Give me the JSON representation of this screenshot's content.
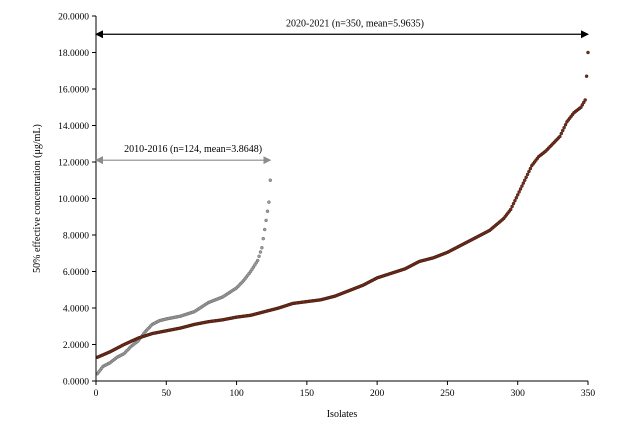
{
  "chart_data": {
    "type": "scatter",
    "xlabel": "Isolates",
    "ylabel": "50% effective concentration (μg/mL)",
    "xlim": [
      0,
      350
    ],
    "ylim": [
      0,
      20
    ],
    "x_ticks": [
      "0",
      "50",
      "100",
      "150",
      "200",
      "250",
      "300",
      "350"
    ],
    "y_ticks": [
      "0.0000",
      "2.0000",
      "4.0000",
      "6.0000",
      "8.0000",
      "10.0000",
      "12.0000",
      "14.0000",
      "16.0000",
      "18.0000",
      "20.0000"
    ],
    "grid": false,
    "colors": {
      "series_2020": "#7a2e1a",
      "series_2010": "#8c8c8c",
      "arrow_2020": "#000000",
      "arrow_2010": "#8c8c8c"
    },
    "annotations": [
      {
        "text": "2020-2021 (n=350, mean=5.9635)",
        "x_start": 0,
        "x_end": 350,
        "y": 19.0
      },
      {
        "text": "2010-2016 (n=124, mean=3.8648)",
        "x_start": 0,
        "x_end": 124,
        "y": 12.1
      }
    ],
    "series": [
      {
        "n": 350,
        "curve": [
          [
            1,
            1.3
          ],
          [
            10,
            1.6
          ],
          [
            20,
            2.0
          ],
          [
            30,
            2.35
          ],
          [
            40,
            2.6
          ],
          [
            50,
            2.75
          ],
          [
            60,
            2.9
          ],
          [
            70,
            3.1
          ],
          [
            80,
            3.25
          ],
          [
            90,
            3.35
          ],
          [
            100,
            3.5
          ],
          [
            110,
            3.6
          ],
          [
            120,
            3.8
          ],
          [
            130,
            4.0
          ],
          [
            140,
            4.25
          ],
          [
            150,
            4.35
          ],
          [
            160,
            4.45
          ],
          [
            170,
            4.65
          ],
          [
            180,
            4.95
          ],
          [
            190,
            5.25
          ],
          [
            200,
            5.65
          ],
          [
            210,
            5.9
          ],
          [
            220,
            6.15
          ],
          [
            230,
            6.55
          ],
          [
            240,
            6.75
          ],
          [
            250,
            7.05
          ],
          [
            260,
            7.45
          ],
          [
            270,
            7.85
          ],
          [
            280,
            8.25
          ],
          [
            290,
            8.9
          ],
          [
            295,
            9.4
          ],
          [
            300,
            10.2
          ],
          [
            305,
            11.0
          ],
          [
            310,
            11.8
          ],
          [
            315,
            12.3
          ],
          [
            320,
            12.6
          ],
          [
            325,
            13.0
          ],
          [
            330,
            13.4
          ],
          [
            335,
            14.2
          ],
          [
            340,
            14.7
          ],
          [
            345,
            15.0
          ],
          [
            348,
            15.4
          ],
          [
            350,
            18.0
          ]
        ]
      },
      {
        "n": 124,
        "curve": [
          [
            1,
            0.4
          ],
          [
            5,
            0.8
          ],
          [
            10,
            1.0
          ],
          [
            15,
            1.3
          ],
          [
            20,
            1.5
          ],
          [
            25,
            1.9
          ],
          [
            30,
            2.2
          ],
          [
            35,
            2.7
          ],
          [
            40,
            3.1
          ],
          [
            45,
            3.3
          ],
          [
            50,
            3.4
          ],
          [
            60,
            3.55
          ],
          [
            70,
            3.8
          ],
          [
            80,
            4.3
          ],
          [
            90,
            4.6
          ],
          [
            100,
            5.1
          ],
          [
            105,
            5.5
          ],
          [
            110,
            6.0
          ],
          [
            115,
            6.6
          ],
          [
            118,
            7.3
          ],
          [
            120,
            8.3
          ],
          [
            122,
            9.3
          ],
          [
            123,
            9.8
          ],
          [
            124,
            11.0
          ]
        ]
      }
    ]
  }
}
